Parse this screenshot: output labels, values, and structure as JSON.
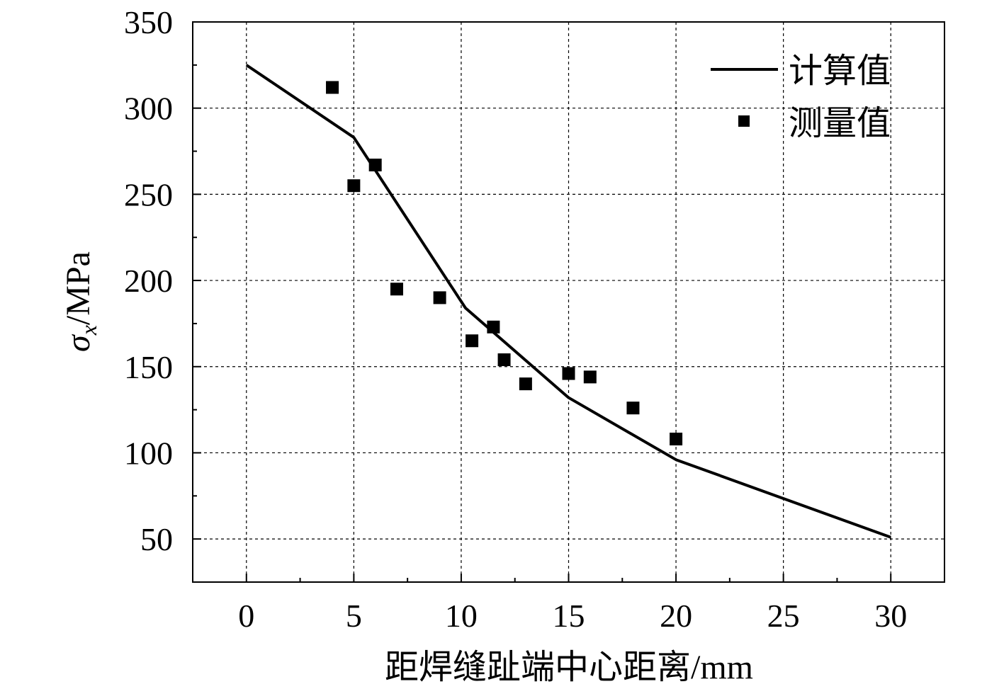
{
  "chart_data": {
    "type": "line+scatter",
    "xlabel": "距焊缝趾端中心距离/mm",
    "ylabel": {
      "symbol": "σ",
      "subscript": "x",
      "unit": "/MPa"
    },
    "xlim": [
      -2.5,
      32.5
    ],
    "ylim": [
      25,
      350
    ],
    "xticks": [
      0,
      5,
      10,
      15,
      20,
      25,
      30
    ],
    "yticks": [
      50,
      100,
      150,
      200,
      250,
      300,
      350
    ],
    "grid": true,
    "legend_position": "top-right",
    "series": [
      {
        "name": "计算值",
        "kind": "line",
        "color": "#000000",
        "x": [
          0,
          5,
          10.2,
          15,
          20,
          30
        ],
        "y": [
          325,
          283,
          184,
          132,
          96,
          51
        ]
      },
      {
        "name": "测量值",
        "kind": "scatter",
        "marker": "square",
        "color": "#000000",
        "x": [
          4,
          5,
          6,
          7,
          9,
          10.5,
          11.5,
          12,
          13,
          15,
          16,
          18,
          20
        ],
        "y": [
          312,
          255,
          267,
          195,
          190,
          165,
          173,
          154,
          140,
          146,
          144,
          126,
          108
        ]
      }
    ]
  }
}
